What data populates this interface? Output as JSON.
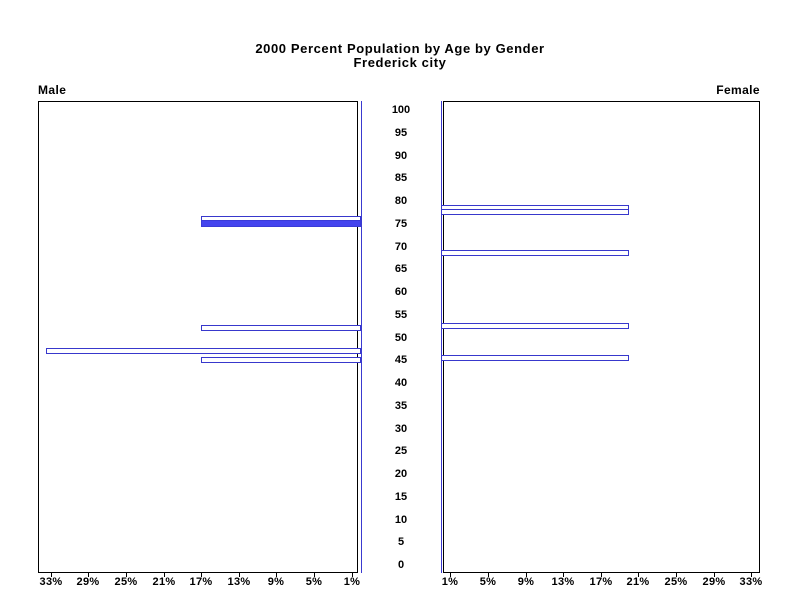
{
  "title": {
    "line1": "2000 Percent Population by Age by Gender",
    "line2": "Frederick city"
  },
  "panels": {
    "left_label": "Male",
    "right_label": "Female"
  },
  "colors": {
    "bar_outline": "#3838cc",
    "bar_fill": "#4444ee",
    "axis_line_blue": "#3a3ad0",
    "frame": "#000000",
    "text": "#000000",
    "background": "#ffffff"
  },
  "chart_data": {
    "type": "bar",
    "variant": "population-pyramid",
    "title": "2000 Percent Population by Age by Gender",
    "subtitle": "Frederick city",
    "legend": "none",
    "grid": false,
    "age_axis": {
      "min": 0,
      "max": 100,
      "tick_step": 5,
      "ticks": [
        0,
        5,
        10,
        15,
        20,
        25,
        30,
        35,
        40,
        45,
        50,
        55,
        60,
        65,
        70,
        75,
        80,
        85,
        90,
        95,
        100
      ],
      "position": "center"
    },
    "pct_axis": {
      "tick_values": [
        1,
        5,
        9,
        13,
        17,
        21,
        25,
        29,
        33
      ],
      "tick_labels": [
        "1%",
        "5%",
        "9%",
        "13%",
        "17%",
        "21%",
        "25%",
        "29%",
        "33%"
      ],
      "axis_max": 34,
      "left_panel_order": "33% outer to 1% inner",
      "right_panel_order": "1% inner to 33% outer"
    },
    "series": [
      {
        "name": "Male",
        "side": "left",
        "bars": [
          {
            "age": 76,
            "percent": 17.0,
            "style": "outline"
          },
          {
            "age": 75,
            "percent": 17.0,
            "style": "solid"
          },
          {
            "age": 52,
            "percent": 17.0,
            "style": "outline"
          },
          {
            "age": 47,
            "percent": 33.5,
            "style": "outline"
          },
          {
            "age": 45,
            "percent": 17.0,
            "style": "outline"
          }
        ]
      },
      {
        "name": "Female",
        "side": "right",
        "bars": [
          {
            "age": 79,
            "percent": 20.0,
            "style": "outline"
          },
          {
            "age": 78,
            "percent": 20.0,
            "style": "outline"
          },
          {
            "age": 69,
            "percent": 20.0,
            "style": "outline"
          },
          {
            "age": 53,
            "percent": 20.0,
            "style": "outline"
          },
          {
            "age": 46,
            "percent": 20.0,
            "style": "outline"
          }
        ]
      }
    ]
  }
}
